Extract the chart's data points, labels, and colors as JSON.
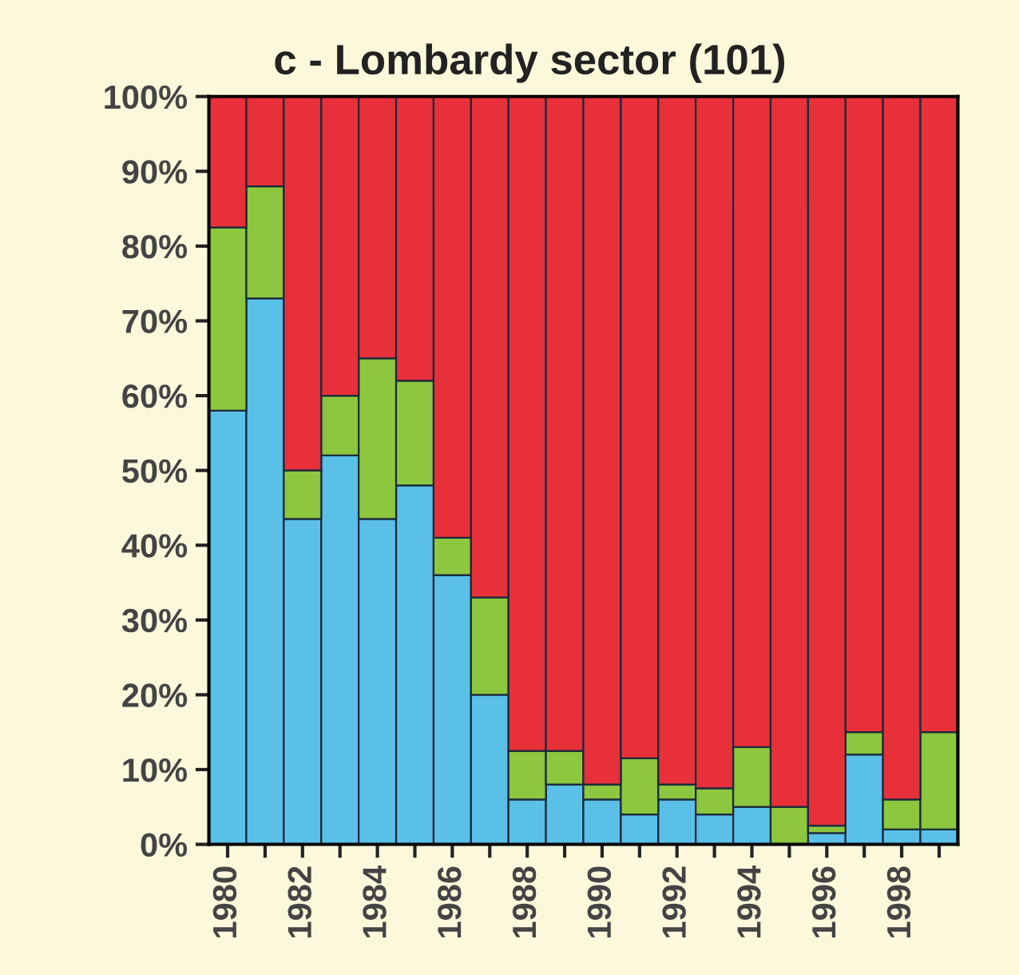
{
  "chart_data": {
    "type": "bar",
    "title": "c - Lombardy sector (101)",
    "stacked": true,
    "categories": [
      "1980",
      null,
      "1982",
      null,
      "1984",
      null,
      "1986",
      null,
      "1988",
      null,
      "1990",
      null,
      "1992",
      null,
      "1994",
      null,
      "1996",
      null,
      "1998",
      null
    ],
    "series": [
      {
        "color": "#5bc0e8",
        "values": [
          58,
          73,
          43.5,
          52,
          43.5,
          48,
          36,
          20,
          6,
          8,
          6,
          4,
          6,
          4,
          5,
          0,
          1.5,
          12,
          2,
          2
        ]
      },
      {
        "color": "#8dc63f",
        "values": [
          24.5,
          15,
          6.5,
          8,
          21.5,
          14,
          5,
          13,
          6.5,
          4.5,
          2,
          7.5,
          2,
          3.5,
          8,
          5,
          1,
          3,
          4,
          13
        ]
      },
      {
        "color": "#e8303a",
        "values": [
          17.5,
          12,
          50,
          40,
          35,
          38,
          59,
          67,
          87.5,
          87.5,
          92,
          88.5,
          92,
          92.5,
          87,
          95,
          97.5,
          85,
          94,
          85
        ]
      }
    ],
    "ylim": [
      0,
      100
    ],
    "yticks": [
      {
        "value": 0,
        "label": "0%"
      },
      {
        "value": 10,
        "label": "10%"
      },
      {
        "value": 20,
        "label": "20%"
      },
      {
        "value": 30,
        "label": "30%"
      },
      {
        "value": 40,
        "label": "40%"
      },
      {
        "value": 50,
        "label": "50%"
      },
      {
        "value": 60,
        "label": "60%"
      },
      {
        "value": 70,
        "label": "70%"
      },
      {
        "value": 80,
        "label": "80%"
      },
      {
        "value": 90,
        "label": "90%"
      },
      {
        "value": 100,
        "label": "100%"
      }
    ],
    "grid": false
  }
}
